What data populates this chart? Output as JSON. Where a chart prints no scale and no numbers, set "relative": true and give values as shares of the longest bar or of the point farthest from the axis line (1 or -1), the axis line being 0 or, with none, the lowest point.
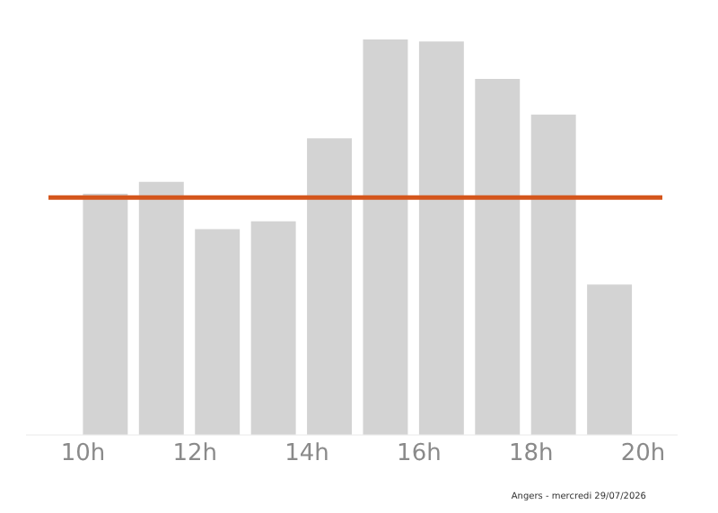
{
  "chart_data": {
    "type": "bar",
    "relative": true,
    "color": "#d3d3d3",
    "x": [
      10.4,
      11.4,
      12.4,
      13.4,
      14.4,
      15.4,
      16.4,
      17.4,
      18.4,
      19.4
    ],
    "values": [
      0.61,
      0.64,
      0.52,
      0.54,
      0.75,
      1,
      0.995,
      0.9,
      0.81,
      0.38
    ],
    "xlim": [
      9,
      20.6
    ],
    "xticks": [
      {
        "value": 10,
        "label": "10h"
      },
      {
        "value": 12,
        "label": "12h"
      },
      {
        "value": 14,
        "label": "14h"
      },
      {
        "value": 16,
        "label": "16h"
      },
      {
        "value": 18,
        "label": "18h"
      },
      {
        "value": 20,
        "label": "20h"
      }
    ],
    "ref_lines": [
      {
        "axis": "y",
        "value": 0.6,
        "color": "#d4561c"
      }
    ],
    "annotations": [
      "Angers - mercredi 29/07/2026"
    ],
    "grid": false,
    "legend": false
  }
}
